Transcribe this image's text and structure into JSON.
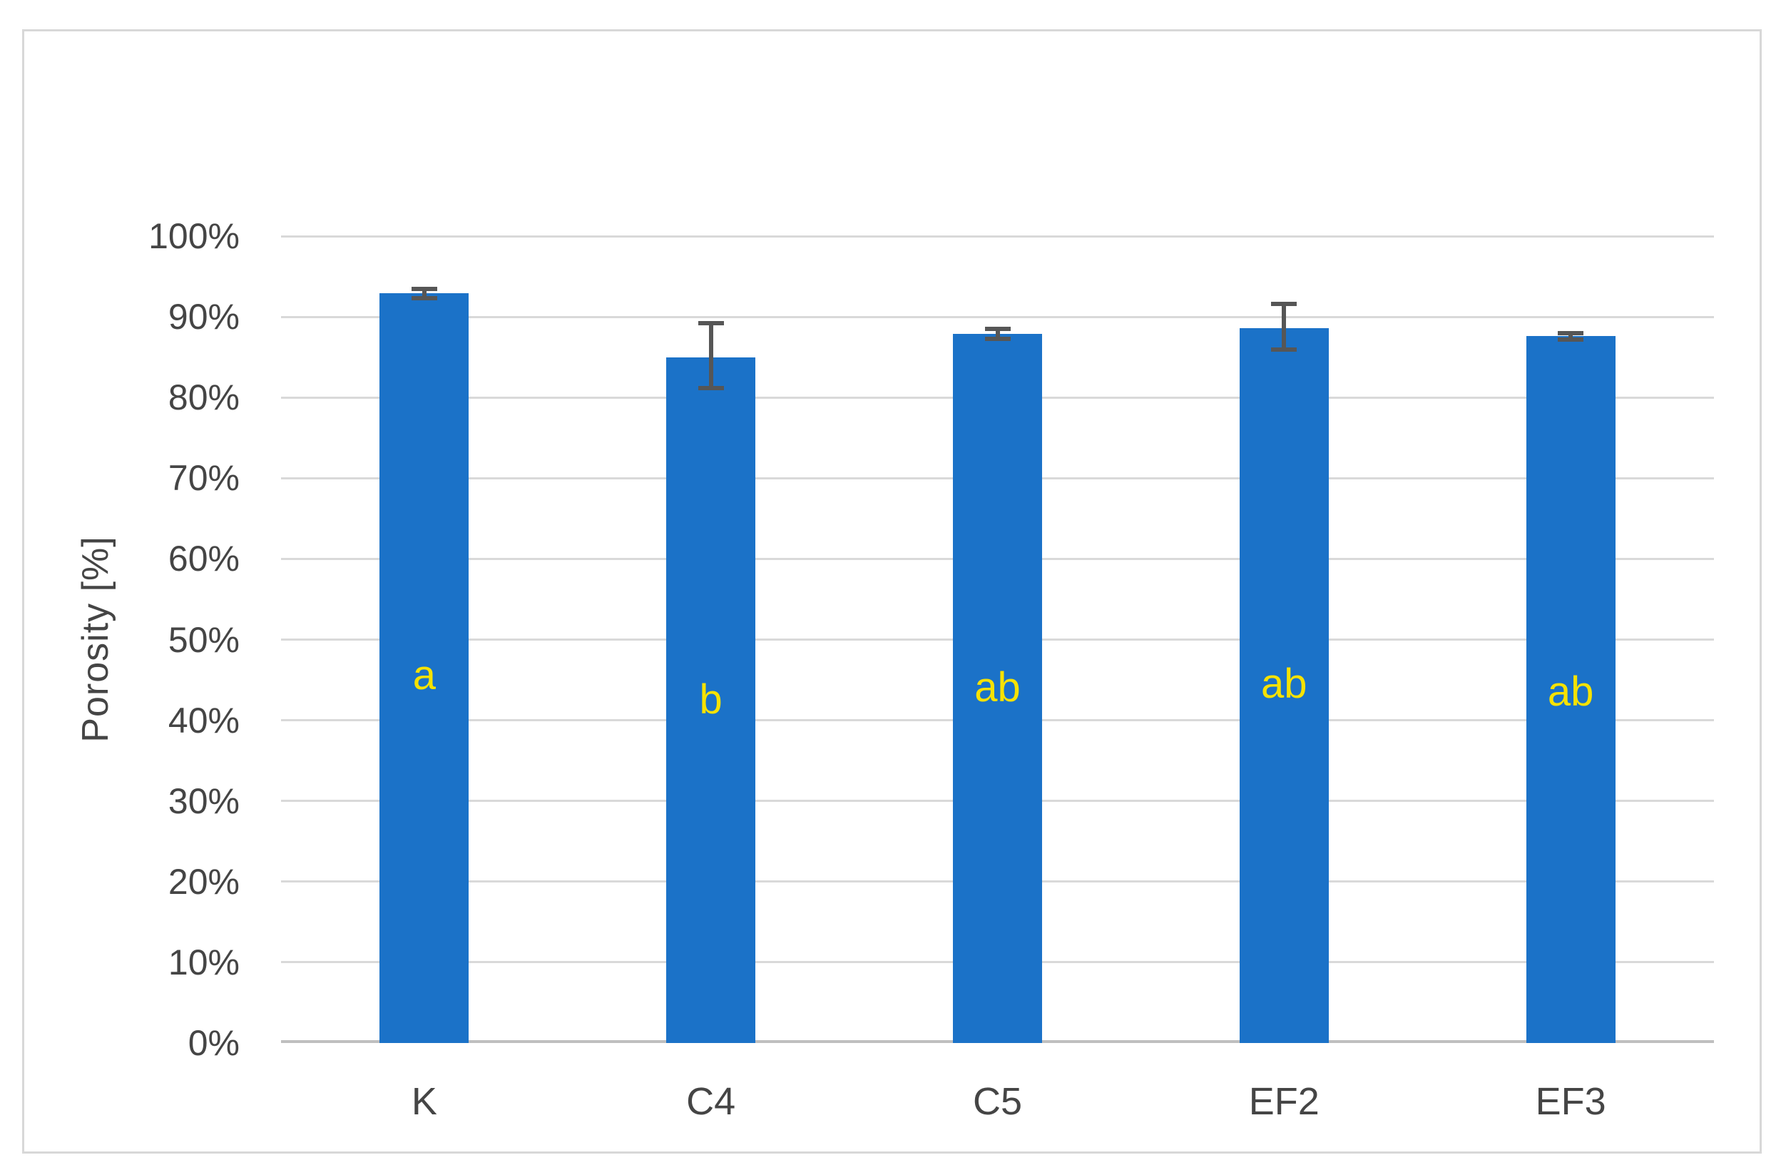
{
  "chart_data": {
    "type": "bar",
    "title": "",
    "xlabel": "",
    "ylabel": "Porosity [%]",
    "categories": [
      "K",
      "C4",
      "C5",
      "EF2",
      "EF3"
    ],
    "values": [
      92.9,
      85.0,
      87.9,
      88.6,
      87.6
    ],
    "errors_plus": [
      0.6,
      4.2,
      0.6,
      3.0,
      0.4
    ],
    "errors_minus": [
      0.6,
      3.8,
      0.6,
      2.7,
      0.4
    ],
    "significance_letters": [
      "a",
      "b",
      "ab",
      "ab",
      "ab"
    ],
    "letter_y_percent": [
      45.5,
      42.5,
      44.0,
      44.5,
      43.5
    ],
    "ylim": [
      0,
      100
    ],
    "ytick_step": 10,
    "yticks": [
      {
        "value": 0,
        "label": "0%"
      },
      {
        "value": 10,
        "label": "10%"
      },
      {
        "value": 20,
        "label": "20%"
      },
      {
        "value": 30,
        "label": "30%"
      },
      {
        "value": 40,
        "label": "40%"
      },
      {
        "value": 50,
        "label": "50%"
      },
      {
        "value": 60,
        "label": "60%"
      },
      {
        "value": 70,
        "label": "70%"
      },
      {
        "value": 80,
        "label": "80%"
      },
      {
        "value": 90,
        "label": "90%"
      },
      {
        "value": 100,
        "label": "100%"
      }
    ],
    "grid": true,
    "legend": "none",
    "colors": {
      "bar": "#1b72c8",
      "letter": "#f6e200",
      "gridline": "#d9d9d9",
      "axis_line": "#bfbfbf",
      "error_bar": "#565656",
      "text": "#454545",
      "chart_border": "#d8d8d8",
      "background": "#ffffff"
    }
  }
}
